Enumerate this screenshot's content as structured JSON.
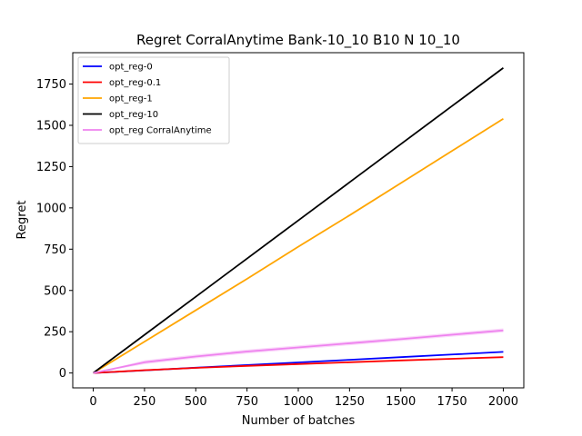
{
  "chart_data": {
    "type": "line",
    "title": "Regret CorralAnytime Bank-10_10 B10 N 10_10",
    "xlabel": "Number of batches",
    "ylabel": "Regret",
    "xlim": [
      -100,
      2100
    ],
    "ylim": [
      -90,
      1940
    ],
    "xticks": [
      0,
      250,
      500,
      750,
      1000,
      1250,
      1500,
      1750,
      2000
    ],
    "yticks": [
      0,
      250,
      500,
      750,
      1000,
      1250,
      1500,
      1750
    ],
    "grid": false,
    "legend_position": "top-left",
    "series": [
      {
        "name": "opt_reg-0",
        "color": "#0000ff",
        "x": [
          0,
          250,
          500,
          750,
          1000,
          1250,
          1500,
          1750,
          2000
        ],
        "y": [
          0,
          16,
          32,
          48,
          64,
          80,
          96,
          112,
          128
        ]
      },
      {
        "name": "opt_reg-0.1",
        "color": "#ff0000",
        "x": [
          0,
          250,
          500,
          750,
          1000,
          1250,
          1500,
          1750,
          2000
        ],
        "y": [
          0,
          17,
          31,
          43,
          54,
          65,
          76,
          86,
          96
        ]
      },
      {
        "name": "opt_reg-1",
        "color": "#ffa500",
        "x": [
          0,
          250,
          500,
          750,
          1000,
          1250,
          1500,
          1750,
          2000
        ],
        "y": [
          0,
          190,
          380,
          570,
          765,
          955,
          1150,
          1345,
          1540
        ]
      },
      {
        "name": "opt_reg-10",
        "color": "#000000",
        "x": [
          0,
          250,
          500,
          750,
          1000,
          1250,
          1500,
          1750,
          2000
        ],
        "y": [
          0,
          231,
          462,
          693,
          924,
          1155,
          1386,
          1617,
          1848
        ]
      },
      {
        "name": "opt_reg CorralAnytime",
        "color": "#ee82ee",
        "band": 12,
        "x": [
          0,
          250,
          500,
          750,
          1000,
          1250,
          1500,
          1750,
          2000
        ],
        "y": [
          0,
          65,
          100,
          130,
          155,
          180,
          205,
          232,
          258
        ]
      }
    ]
  }
}
